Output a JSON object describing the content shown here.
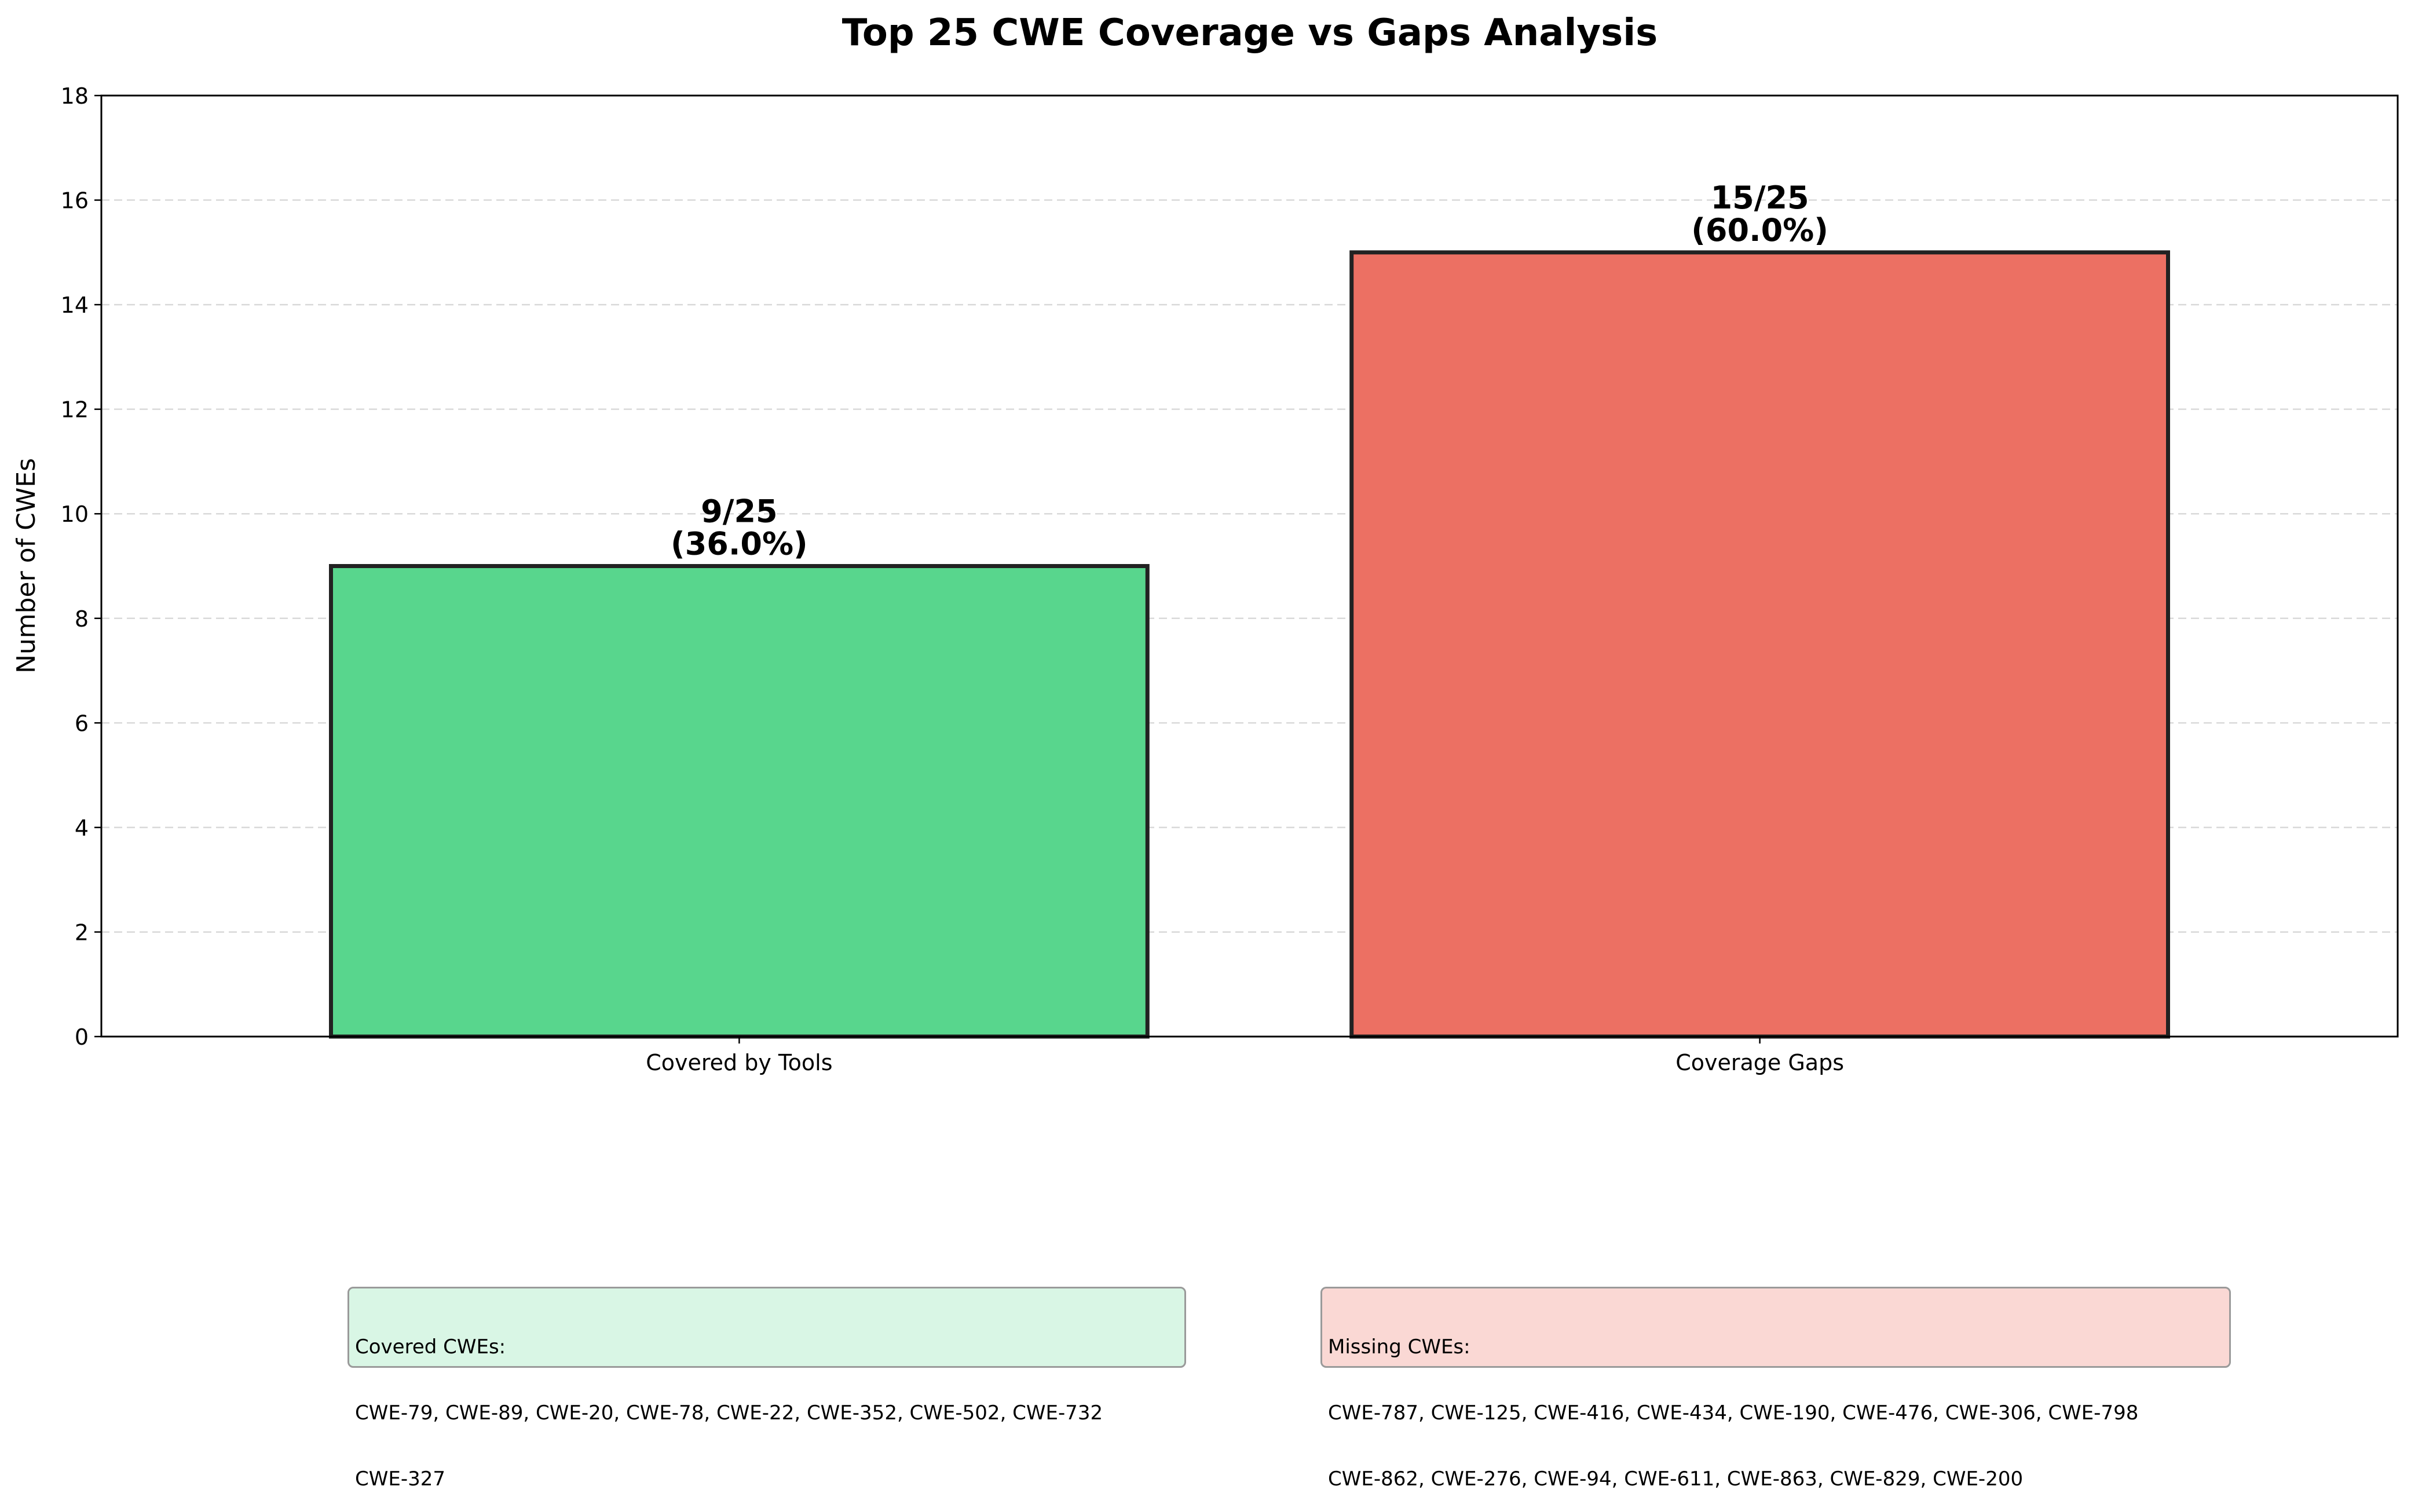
{
  "chart_data": {
    "type": "bar",
    "title": "Top 25 CWE Coverage vs Gaps Analysis",
    "xlabel": "",
    "ylabel": "Number of CWEs",
    "ylim": [
      0,
      18
    ],
    "yticks": [
      "0",
      "2",
      "4",
      "6",
      "8",
      "10",
      "12",
      "14",
      "16",
      "18"
    ],
    "categories": [
      "Covered by Tools",
      "Coverage Gaps"
    ],
    "values": [
      9,
      15
    ],
    "bar_labels": [
      [
        "9/25",
        "(36.0%)"
      ],
      [
        "15/25",
        "(60.0%)"
      ]
    ],
    "colors": [
      "#58d68d",
      "#ec7063"
    ],
    "grid": "y-dashed"
  },
  "annotations": {
    "covered": {
      "title": "Covered CWEs:",
      "lines": [
        "CWE-79, CWE-89, CWE-20, CWE-78, CWE-22, CWE-352, CWE-502, CWE-732",
        "CWE-327"
      ]
    },
    "missing": {
      "title": "Missing CWEs:",
      "lines": [
        "CWE-787, CWE-125, CWE-416, CWE-434, CWE-190, CWE-476, CWE-306, CWE-798",
        "CWE-862, CWE-276, CWE-94, CWE-611, CWE-863, CWE-829, CWE-200"
      ]
    }
  }
}
